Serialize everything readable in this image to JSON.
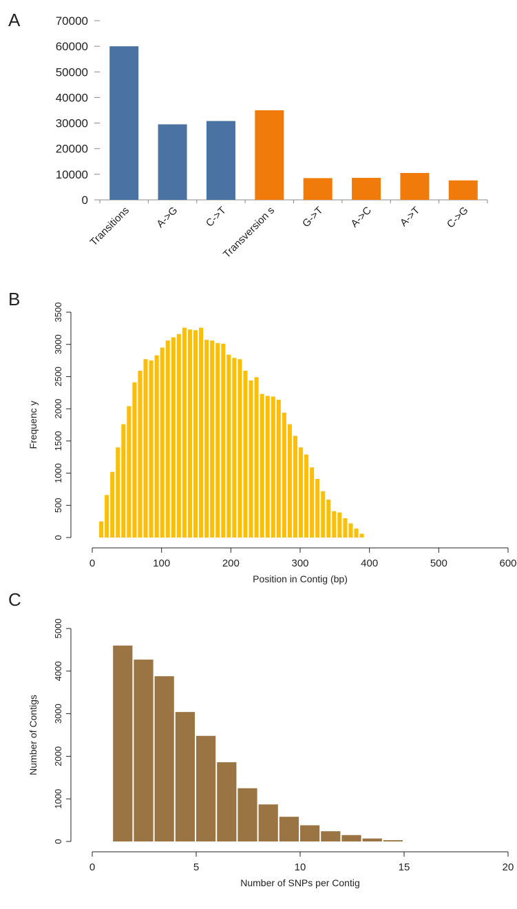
{
  "panels": {
    "a": "A",
    "b": "B",
    "c": "C"
  },
  "chart_data": [
    {
      "panel": "A",
      "type": "bar",
      "categories": [
        "Transitions",
        "A->G",
        "C->T",
        "Transversion s",
        "G->T",
        "A->C",
        "A->T",
        "C->G"
      ],
      "values": [
        60000,
        29500,
        30800,
        35000,
        8500,
        8600,
        10500,
        7600
      ],
      "colors": [
        "#4a72a3",
        "#4a72a3",
        "#4a72a3",
        "#f07a0a",
        "#f07a0a",
        "#f07a0a",
        "#f07a0a",
        "#f07a0a"
      ],
      "ylim": [
        0,
        70000
      ],
      "yticks": [
        "0",
        "10000",
        "20000",
        "30000",
        "40000",
        "50000",
        "60000",
        "70000"
      ],
      "xlabel": "",
      "ylabel": "",
      "grid": false
    },
    {
      "panel": "B",
      "type": "bar",
      "bar_color": "#fcbf05",
      "x_start": 10,
      "bin_width": 8,
      "values": [
        250,
        660,
        1020,
        1400,
        1760,
        2040,
        2410,
        2590,
        2770,
        2750,
        2830,
        2950,
        3060,
        3110,
        3160,
        3260,
        3230,
        3220,
        3260,
        3070,
        3060,
        3020,
        3010,
        2840,
        2790,
        2770,
        2590,
        2440,
        2490,
        2230,
        2200,
        2190,
        2140,
        1940,
        1760,
        1580,
        1400,
        1290,
        1090,
        910,
        720,
        590,
        410,
        390,
        300,
        220,
        140,
        60
      ],
      "xlim": [
        0,
        600
      ],
      "ylim": [
        0,
        3500
      ],
      "xticks": [
        "0",
        "100",
        "200",
        "300",
        "400",
        "500",
        "600"
      ],
      "yticks": [
        "0",
        "500",
        "1000",
        "1500",
        "2000",
        "2500",
        "3000",
        "3500"
      ],
      "xlabel": "Position in Contig (bp)",
      "ylabel": "Frequenc y",
      "grid": false
    },
    {
      "panel": "C",
      "type": "bar",
      "bar_color": "#9b7444",
      "x_start": 1,
      "bin_width": 1,
      "values": [
        4600,
        4270,
        3880,
        3040,
        2480,
        1860,
        1250,
        870,
        580,
        380,
        240,
        150,
        70,
        30
      ],
      "xlim": [
        0,
        20
      ],
      "ylim": [
        0,
        5000
      ],
      "xticks": [
        "0",
        "5",
        "10",
        "15",
        "20"
      ],
      "yticks": [
        "0",
        "1000",
        "2000",
        "3000",
        "4000",
        "5000"
      ],
      "xlabel": "Number of SNPs per Contig",
      "ylabel": "Number of Contigs",
      "grid": false
    }
  ]
}
